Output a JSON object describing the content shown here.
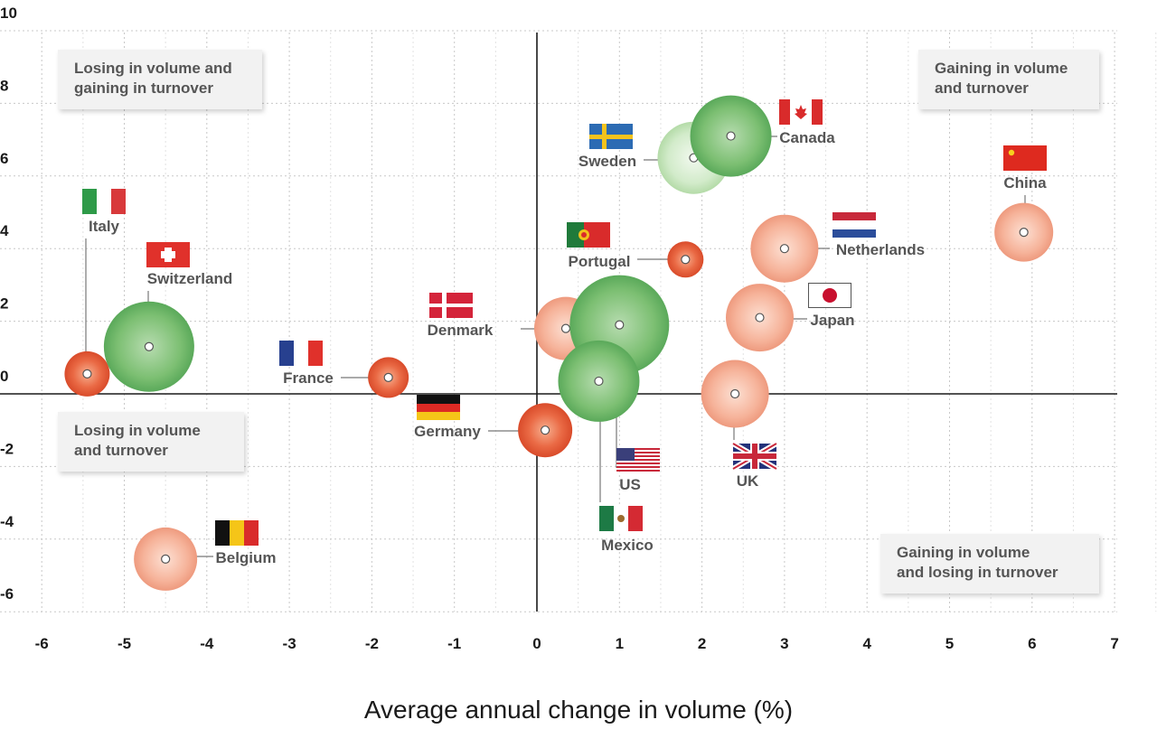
{
  "chart_data": {
    "type": "scatter",
    "xlabel": "Average annual change in volume (%)",
    "ylabel": "",
    "xlim": [
      -6,
      7
    ],
    "ylim": [
      -6,
      10
    ],
    "x_ticks": [
      "-6",
      "-5",
      "-4",
      "-3",
      "-2",
      "-1",
      "0",
      "1",
      "2",
      "3",
      "4",
      "5",
      "6",
      "7"
    ],
    "y_ticks": [
      "10",
      "8",
      "6",
      "4",
      "2",
      "0",
      "-2",
      "-4",
      "-6"
    ],
    "grid": true,
    "quadrant_labels": {
      "top_left": [
        "Losing in volume and",
        "gaining in turnover"
      ],
      "top_right": [
        "Gaining in volume",
        "and turnover"
      ],
      "bottom_left": [
        "Losing in volume",
        "and turnover"
      ],
      "bottom_right": [
        "Gaining in volume",
        "and losing in turnover"
      ]
    },
    "points": [
      {
        "country": "Italy",
        "x": -5.45,
        "y": 0.55,
        "color": "red",
        "size": 0.5
      },
      {
        "country": "Switzerland",
        "x": -4.7,
        "y": 1.3,
        "color": "green",
        "size": 1.0
      },
      {
        "country": "France",
        "x": -1.8,
        "y": 0.45,
        "color": "red",
        "size": 0.45
      },
      {
        "country": "Germany",
        "x": 0.1,
        "y": -1.0,
        "color": "red",
        "size": 0.6
      },
      {
        "country": "Denmark",
        "x": 0.35,
        "y": 1.8,
        "color": "salmon",
        "size": 0.7
      },
      {
        "country": "US",
        "x": 1.0,
        "y": 1.9,
        "color": "green",
        "size": 1.1
      },
      {
        "country": "Mexico",
        "x": 0.75,
        "y": 0.35,
        "color": "green",
        "size": 0.9
      },
      {
        "country": "Portugal",
        "x": 1.8,
        "y": 3.7,
        "color": "red",
        "size": 0.4
      },
      {
        "country": "Sweden",
        "x": 1.9,
        "y": 6.5,
        "color": "lightgreen",
        "size": 0.8
      },
      {
        "country": "Canada",
        "x": 2.35,
        "y": 7.1,
        "color": "green",
        "size": 0.9
      },
      {
        "country": "Netherlands",
        "x": 3.0,
        "y": 4.0,
        "color": "salmon",
        "size": 0.75
      },
      {
        "country": "Japan",
        "x": 2.7,
        "y": 2.1,
        "color": "salmon",
        "size": 0.75
      },
      {
        "country": "UK",
        "x": 2.4,
        "y": 0.0,
        "color": "salmon",
        "size": 0.75
      },
      {
        "country": "China",
        "x": 5.9,
        "y": 4.45,
        "color": "salmon",
        "size": 0.65
      },
      {
        "country": "Belgium",
        "x": -4.5,
        "y": -4.55,
        "color": "salmon",
        "size": 0.7
      }
    ]
  }
}
